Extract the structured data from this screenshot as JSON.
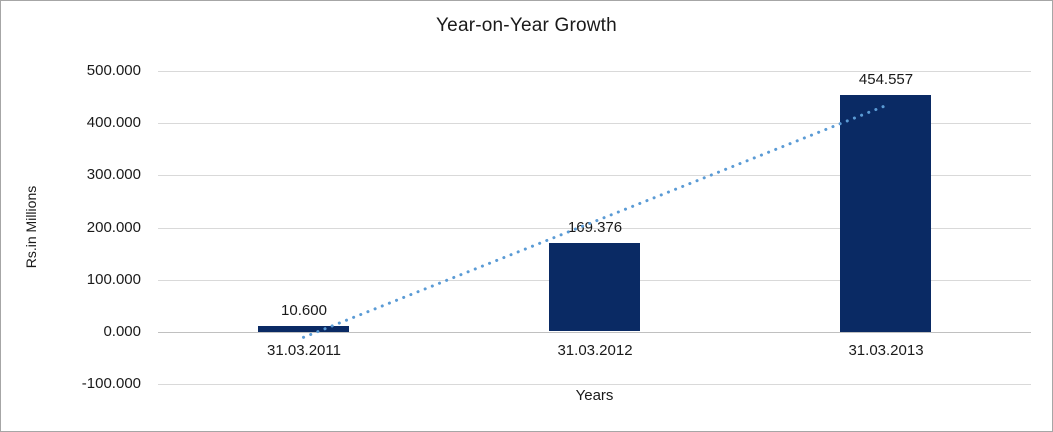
{
  "window": {
    "background": "#ffffff",
    "border_color": "#a6a6a6"
  },
  "chart_data": {
    "type": "bar",
    "title": "Year-on-Year Growth",
    "xlabel": "Years",
    "ylabel": "Rs.in Millions",
    "categories": [
      "31.03.2011",
      "31.03.2012",
      "31.03.2013"
    ],
    "values": [
      10.6,
      169.376,
      454.557
    ],
    "data_labels": [
      "10.600",
      "169.376",
      "454.557"
    ],
    "y_ticks": [
      {
        "label": "500.000",
        "value": 500
      },
      {
        "label": "400.000",
        "value": 400
      },
      {
        "label": "300.000",
        "value": 300
      },
      {
        "label": "200.000",
        "value": 200
      },
      {
        "label": "100.000",
        "value": 100
      },
      {
        "label": "0.000",
        "value": 0
      },
      {
        "label": "-100.000",
        "value": -100
      }
    ],
    "ylim": [
      -100,
      500
    ],
    "grid": true,
    "legend": "none",
    "colors": {
      "bar": "#0a2a64",
      "trendline": "#5b9bd5",
      "grid": "#d9d9d9",
      "axis_line": "#c0c0c0",
      "text": "#1a1a1a"
    },
    "trendline": {
      "type": "linear",
      "style": "dotted",
      "color": "#5b9bd5",
      "start_value": -10.5,
      "end_value": 433.5
    }
  }
}
